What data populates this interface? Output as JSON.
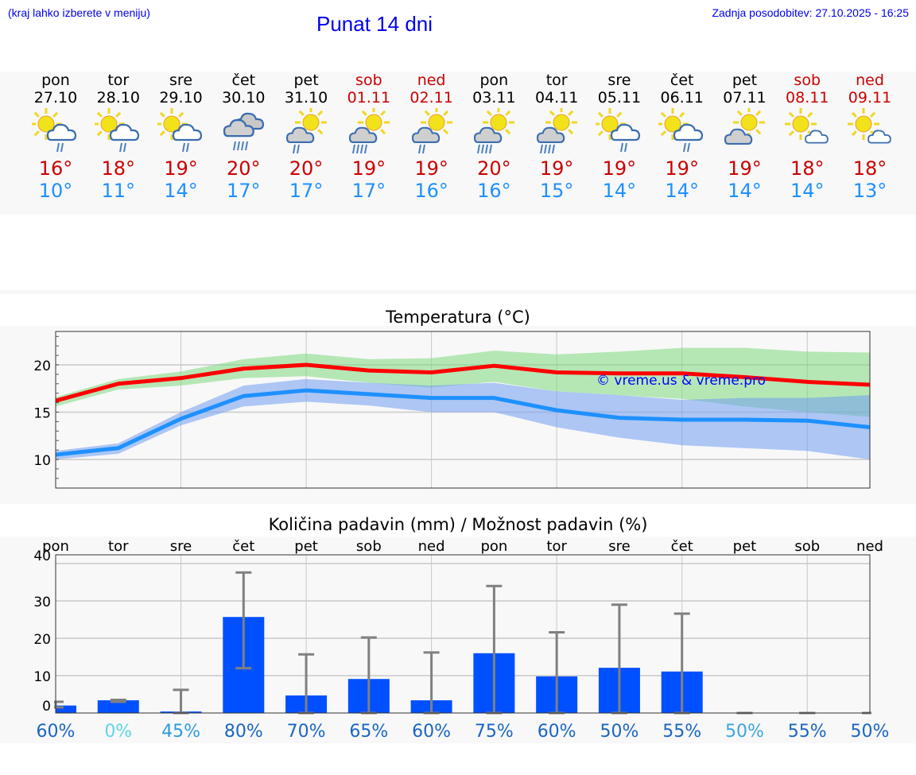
{
  "header": {
    "hint": "(kraj lahko izberete v meniju)",
    "title": "Punat 14 dni",
    "updated": "Zadnja posodobitev: 27.10.2025 - 16:25"
  },
  "colors": {
    "max": "#cc0000",
    "min": "#1e90ff",
    "weekend": "#cc0000",
    "bar": "#0050ff",
    "link": "#0000ee"
  },
  "days": [
    {
      "name": "pon",
      "date": "27.10",
      "weekend": false,
      "icon": "sun-cloud-light-rain",
      "max": "16°",
      "min": "10°"
    },
    {
      "name": "tor",
      "date": "28.10",
      "weekend": false,
      "icon": "sun-cloud-light-rain",
      "max": "18°",
      "min": "11°"
    },
    {
      "name": "sre",
      "date": "29.10",
      "weekend": false,
      "icon": "sun-cloud-light-rain",
      "max": "19°",
      "min": "14°"
    },
    {
      "name": "čet",
      "date": "30.10",
      "weekend": false,
      "icon": "overcast-rain",
      "max": "20°",
      "min": "17°"
    },
    {
      "name": "pet",
      "date": "31.10",
      "weekend": false,
      "icon": "cloud-sun-light-rain",
      "max": "20°",
      "min": "17°"
    },
    {
      "name": "sob",
      "date": "01.11",
      "weekend": true,
      "icon": "cloud-sun-rain",
      "max": "19°",
      "min": "17°"
    },
    {
      "name": "ned",
      "date": "02.11",
      "weekend": true,
      "icon": "cloud-sun-light-rain",
      "max": "19°",
      "min": "16°"
    },
    {
      "name": "pon",
      "date": "03.11",
      "weekend": false,
      "icon": "cloud-sun-rain",
      "max": "20°",
      "min": "16°"
    },
    {
      "name": "tor",
      "date": "04.11",
      "weekend": false,
      "icon": "cloud-sun-rain",
      "max": "19°",
      "min": "15°"
    },
    {
      "name": "sre",
      "date": "05.11",
      "weekend": false,
      "icon": "sun-cloud-light-rain",
      "max": "19°",
      "min": "14°"
    },
    {
      "name": "čet",
      "date": "06.11",
      "weekend": false,
      "icon": "sun-cloud-light-rain",
      "max": "19°",
      "min": "14°"
    },
    {
      "name": "pet",
      "date": "07.11",
      "weekend": false,
      "icon": "cloud-sun",
      "max": "19°",
      "min": "14°"
    },
    {
      "name": "sob",
      "date": "08.11",
      "weekend": true,
      "icon": "sun-small-cloud",
      "max": "18°",
      "min": "14°"
    },
    {
      "name": "ned",
      "date": "09.11",
      "weekend": true,
      "icon": "sun-small-cloud",
      "max": "18°",
      "min": "13°"
    }
  ],
  "chart_data": [
    {
      "type": "line",
      "title": "Temperatura (°C)",
      "watermark": "© vreme.us & vreme.pro",
      "ylim": [
        7,
        23.5
      ],
      "yticks": [
        "10",
        "15",
        "20"
      ],
      "grid": true,
      "series": [
        {
          "name": "max",
          "color": "#ff0000",
          "values": [
            16.2,
            18.0,
            18.6,
            19.6,
            20.0,
            19.4,
            19.2,
            19.9,
            19.2,
            19.1,
            19.1,
            18.7,
            18.2,
            17.9
          ],
          "band_low": [
            15.6,
            17.4,
            17.8,
            18.6,
            18.8,
            18.1,
            17.6,
            18.2,
            17.2,
            16.8,
            16.4,
            15.6,
            15.0,
            14.5
          ],
          "band_high": [
            16.6,
            18.5,
            19.3,
            20.6,
            21.2,
            20.6,
            20.7,
            21.5,
            21.1,
            21.4,
            21.8,
            21.8,
            21.4,
            21.3
          ],
          "band_color": "#7ed87e"
        },
        {
          "name": "min",
          "color": "#1e90ff",
          "values": [
            10.5,
            11.2,
            14.3,
            16.7,
            17.3,
            16.9,
            16.5,
            16.5,
            15.2,
            14.4,
            14.2,
            14.2,
            14.1,
            13.4
          ],
          "band_low": [
            10.0,
            10.6,
            13.6,
            15.6,
            16.1,
            15.7,
            15.0,
            15.0,
            13.4,
            12.3,
            11.5,
            11.2,
            10.9,
            10.0
          ],
          "band_high": [
            10.9,
            11.7,
            15.0,
            17.8,
            18.5,
            18.1,
            17.8,
            18.1,
            17.2,
            16.8,
            16.3,
            16.5,
            16.5,
            16.8
          ],
          "band_color": "#6f9cf0"
        }
      ]
    },
    {
      "type": "bar",
      "title": "Količina padavin (mm) / Možnost padavin (%)",
      "categories": [
        "pon",
        "tor",
        "sre",
        "čet",
        "pet",
        "sob",
        "ned",
        "pon",
        "tor",
        "sre",
        "čet",
        "pet",
        "sob",
        "ned"
      ],
      "values": [
        2.0,
        3.4,
        0.4,
        25.7,
        4.7,
        9.1,
        3.4,
        16.0,
        9.8,
        12.1,
        11.1,
        0,
        0,
        0
      ],
      "err_low": [
        1.5,
        3.0,
        0,
        12.0,
        0,
        0,
        0,
        0,
        0,
        0,
        0,
        0,
        0,
        0
      ],
      "err_high": [
        3.0,
        3.5,
        6.2,
        37.6,
        15.7,
        20.2,
        16.2,
        34.0,
        21.6,
        29.0,
        26.6,
        0,
        0,
        0
      ],
      "probability": [
        "60%",
        "0%",
        "45%",
        "80%",
        "70%",
        "65%",
        "60%",
        "75%",
        "60%",
        "50%",
        "55%",
        "50%",
        "55%",
        "50%"
      ],
      "prob_colors": [
        "#1a66c2",
        "#5fd6e6",
        "#2b9ddb",
        "#1a66c2",
        "#1a66c2",
        "#1a66c2",
        "#1a66c2",
        "#1a66c2",
        "#1a66c2",
        "#1a66c2",
        "#1a66c2",
        "#3aa6e0",
        "#1a66c2",
        "#1a66c2"
      ],
      "ylim": [
        0,
        40
      ],
      "yticks": [
        "0",
        "10",
        "20",
        "30",
        "40"
      ]
    }
  ]
}
